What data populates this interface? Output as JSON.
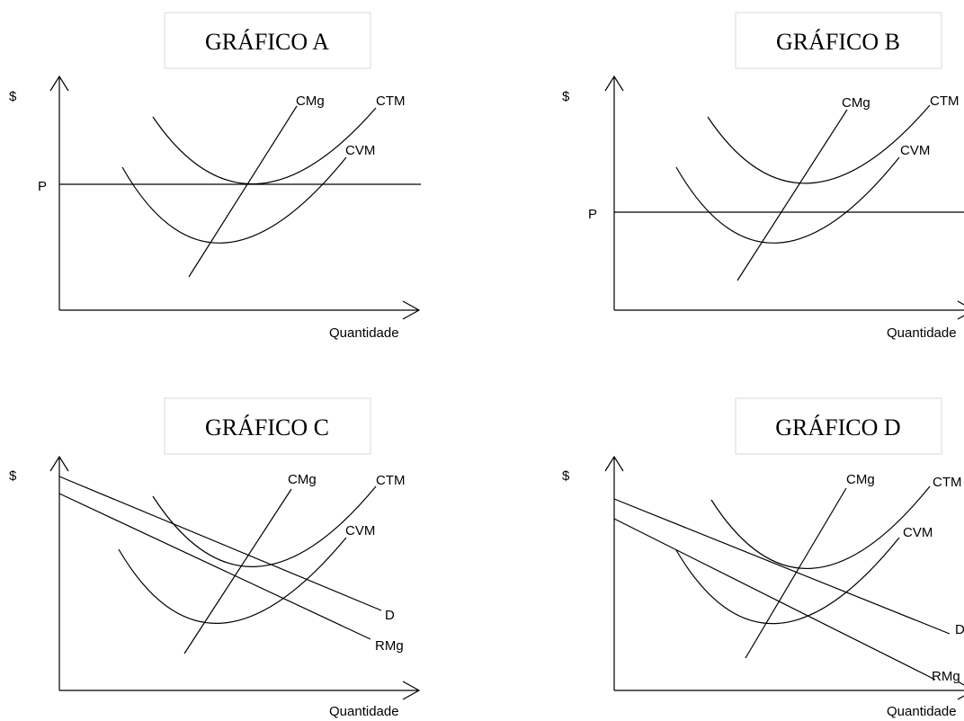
{
  "axis_labels": {
    "y": "$",
    "x": "Quantidade"
  },
  "graphs": [
    {
      "id": "A",
      "title": "GRÁFICO A",
      "price_label": "P",
      "curve_labels": {
        "marginal_cost": "CMg",
        "average_total_cost": "CTM",
        "average_variable_cost": "CVM"
      }
    },
    {
      "id": "B",
      "title": "GRÁFICO B",
      "price_label": "P",
      "curve_labels": {
        "marginal_cost": "CMg",
        "average_total_cost": "CTM",
        "average_variable_cost": "CVM"
      }
    },
    {
      "id": "C",
      "title": "GRÁFICO C",
      "curve_labels": {
        "marginal_cost": "CMg",
        "average_total_cost": "CTM",
        "average_variable_cost": "CVM",
        "demand": "D",
        "marginal_revenue": "RMg"
      }
    },
    {
      "id": "D",
      "title": "GRÁFICO D",
      "curve_labels": {
        "marginal_cost": "CMg",
        "average_total_cost": "CTM",
        "average_variable_cost": "CVM",
        "demand": "D",
        "marginal_revenue": "RMg"
      }
    }
  ]
}
